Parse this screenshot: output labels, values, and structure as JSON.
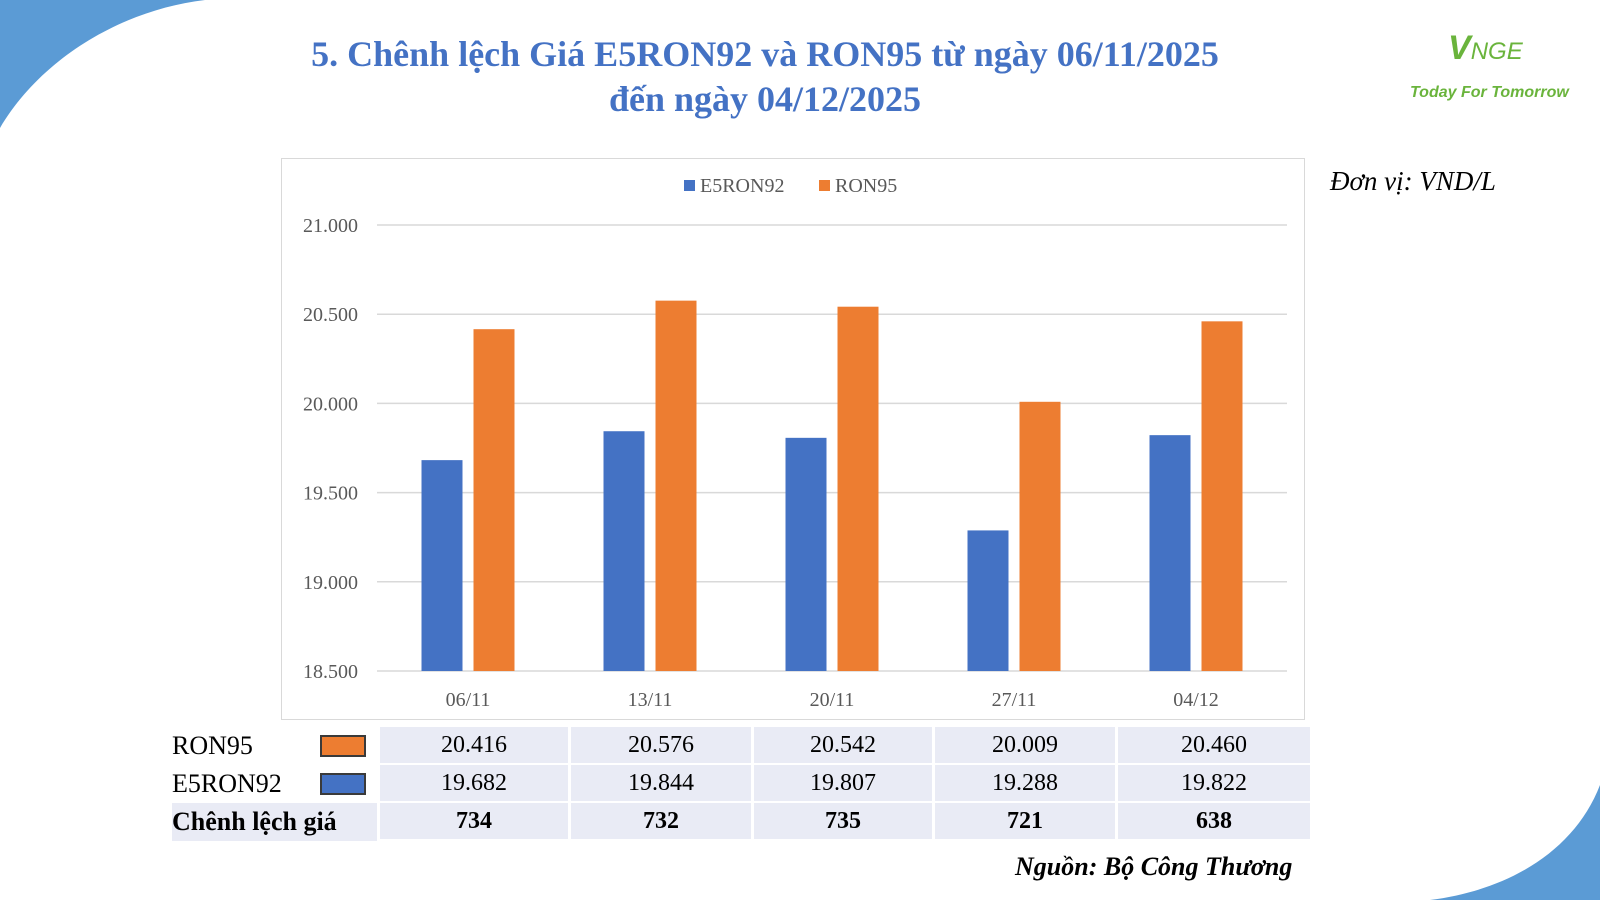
{
  "title": {
    "line1": "5. Chênh lệch Giá E5RON92 và RON95 từ ngày 06/11/2025",
    "line2": "đến ngày 04/12/2025"
  },
  "logo": {
    "mark_big": "V",
    "mark_small": "NGE",
    "tagline": "Today For Tomorrow"
  },
  "unit_label": "Đơn vị: VND/L",
  "source_label": "Nguồn: Bộ Công Thương",
  "colors": {
    "e5ron92": "#4472C4",
    "ron95": "#ED7D31",
    "title": "#4472C4",
    "table_bg": "#e9ebf5"
  },
  "chart_data": {
    "type": "bar",
    "categories": [
      "06/11",
      "13/11",
      "20/11",
      "27/11",
      "04/12"
    ],
    "series": [
      {
        "name": "E5RON92",
        "values": [
          19682,
          19844,
          19807,
          19288,
          19822
        ]
      },
      {
        "name": "RON95",
        "values": [
          20416,
          20576,
          20542,
          20009,
          20460
        ]
      }
    ],
    "ylim": [
      18500,
      21000
    ],
    "yticks": [
      {
        "value": 18500,
        "label": "18.500"
      },
      {
        "value": 19000,
        "label": "19.000"
      },
      {
        "value": 19500,
        "label": "19.500"
      },
      {
        "value": 20000,
        "label": "20.000"
      },
      {
        "value": 20500,
        "label": "20.500"
      },
      {
        "value": 21000,
        "label": "21.000"
      }
    ],
    "grid": true,
    "legend": "top-center"
  },
  "table": {
    "rows": [
      {
        "label": "RON95",
        "values": [
          "20.416",
          "20.576",
          "20.542",
          "20.009",
          "20.460"
        ]
      },
      {
        "label": "E5RON92",
        "values": [
          "19.682",
          "19.844",
          "19.807",
          "19.288",
          "19.822"
        ]
      },
      {
        "label": "Chênh lệch giá",
        "values": [
          "734",
          "732",
          "735",
          "721",
          "638"
        ]
      }
    ]
  }
}
